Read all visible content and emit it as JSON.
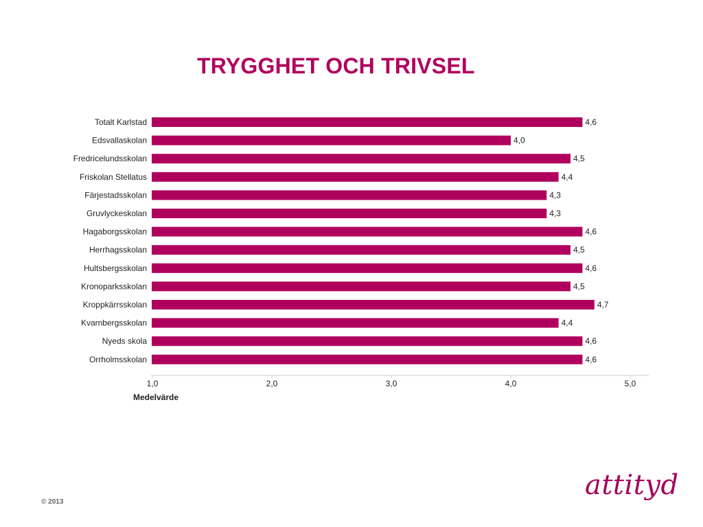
{
  "slide": {
    "title": "TRYGGHET OCH TRIVSEL",
    "copyright": "© 2013",
    "logo_text": "attityd"
  },
  "colors": {
    "bar": "#b0005e",
    "title": "#b0005e",
    "axis": "#cccccc"
  },
  "chart_data": {
    "type": "bar",
    "orientation": "horizontal",
    "categories": [
      "Totalt Karlstad",
      "Edsvallaskolan",
      "Fredricelundsskolan",
      "Friskolan Stellatus",
      "Färjestadsskolan",
      "Gruvlyckeskolan",
      "Hagaborgsskolan",
      "Herrhagsskolan",
      "Hultsbergsskolan",
      "Kronoparksskolan",
      "Kroppkärrsskolan",
      "Kvarnbergsskolan",
      "Nyeds skola",
      "Orrholmsskolan"
    ],
    "values": [
      4.6,
      4.0,
      4.5,
      4.4,
      4.3,
      4.3,
      4.6,
      4.5,
      4.6,
      4.5,
      4.7,
      4.4,
      4.6,
      4.6
    ],
    "value_labels": [
      "4,6",
      "4,0",
      "4,5",
      "4,4",
      "4,3",
      "4,3",
      "4,6",
      "4,5",
      "4,6",
      "4,5",
      "4,7",
      "4,4",
      "4,6",
      "4,6"
    ],
    "xlim": [
      1.0,
      5.0
    ],
    "xticks": [
      1.0,
      2.0,
      3.0,
      4.0,
      5.0
    ],
    "xtick_labels": [
      "1,0",
      "2,0",
      "3,0",
      "4,0",
      "5,0"
    ],
    "xlabel": "Medelvärde",
    "title": "TRYGGHET OCH TRIVSEL",
    "grid": false,
    "legend": "none"
  }
}
